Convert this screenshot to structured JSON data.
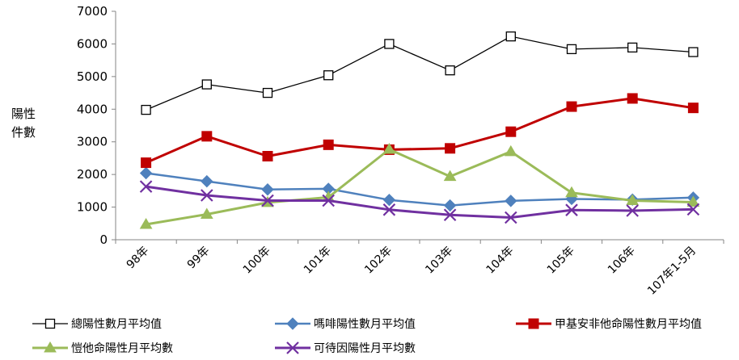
{
  "chart_data": {
    "type": "line",
    "title": "",
    "ylabel": [
      "陽性",
      "件數"
    ],
    "xlabel": "",
    "ylim": [
      0,
      7000
    ],
    "yticks": [
      0,
      1000,
      2000,
      3000,
      4000,
      5000,
      6000,
      7000
    ],
    "grid": false,
    "legend_position": "bottom",
    "categories": [
      "98年",
      "99年",
      "100年",
      "101年",
      "102年",
      "103年",
      "104年",
      "105年",
      "106年",
      "107年1-5月"
    ],
    "series": [
      {
        "name": "總陽性數月平均值",
        "color": "#000000",
        "marker": "square-open",
        "line_width": 1.3,
        "values": [
          3980,
          4760,
          4500,
          5040,
          6000,
          5190,
          6230,
          5840,
          5890,
          5750
        ]
      },
      {
        "name": "嗎啡陽性數月平均值",
        "color": "#4f81bd",
        "marker": "diamond",
        "line_width": 2.5,
        "values": [
          2040,
          1790,
          1540,
          1560,
          1220,
          1050,
          1190,
          1250,
          1230,
          1290
        ]
      },
      {
        "name": "甲基安非他命陽性數月平均值",
        "color": "#c00000",
        "marker": "square",
        "line_width": 3,
        "values": [
          2360,
          3170,
          2560,
          2910,
          2760,
          2800,
          3310,
          4080,
          4330,
          4040
        ]
      },
      {
        "name": "愷他命陽性月平均數",
        "color": "#9bbb59",
        "marker": "triangle",
        "line_width": 3,
        "values": [
          470,
          780,
          1140,
          1300,
          2770,
          1940,
          2700,
          1440,
          1200,
          1150
        ]
      },
      {
        "name": "可待因陽性月平均數",
        "color": "#7030a0",
        "marker": "x",
        "line_width": 3,
        "values": [
          1630,
          1360,
          1200,
          1200,
          920,
          760,
          680,
          910,
          890,
          930
        ]
      }
    ]
  }
}
